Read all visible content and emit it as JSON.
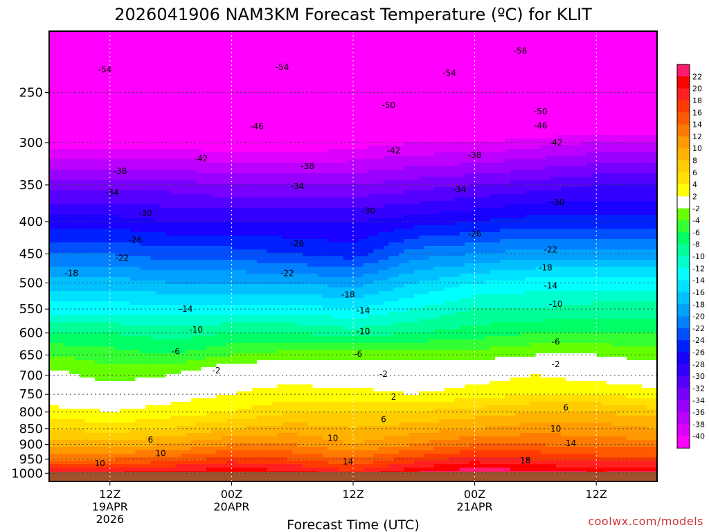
{
  "chart_data": {
    "type": "heatmap",
    "title": "2026041906 NAM3KM Forecast Temperature (ºC) for KLIT",
    "xlabel": "Forecast Time (UTC)",
    "ylabel": "",
    "x_ticks": [
      {
        "hour": 6,
        "lines": [
          "12Z",
          "19APR",
          "2026"
        ]
      },
      {
        "hour": 18,
        "lines": [
          "00Z",
          "20APR"
        ]
      },
      {
        "hour": 30,
        "lines": [
          "12Z"
        ]
      },
      {
        "hour": 42,
        "lines": [
          "00Z",
          "21APR"
        ]
      },
      {
        "hour": 54,
        "lines": [
          "12Z"
        ]
      }
    ],
    "x_range": [
      0,
      60
    ],
    "pressure_ticks": [
      250,
      300,
      350,
      400,
      450,
      500,
      550,
      600,
      650,
      700,
      750,
      800,
      850,
      900,
      950,
      1000
    ],
    "y_range": [
      1030,
      200
    ],
    "y_scale": "log-pressure",
    "grid": true,
    "colorbar": {
      "ticks": [
        22,
        20,
        18,
        16,
        14,
        12,
        10,
        8,
        6,
        4,
        2,
        -2,
        -4,
        -6,
        -8,
        -10,
        -12,
        -14,
        -16,
        -18,
        -20,
        -22,
        -24,
        -26,
        -28,
        -30,
        -32,
        -34,
        -36,
        -38,
        -40
      ],
      "colors": [
        "#ff1a6e",
        "#ff0000",
        "#ff2020",
        "#ff3a00",
        "#ff5a00",
        "#ff7a00",
        "#ff9a00",
        "#ffb300",
        "#ffcc00",
        "#ffe000",
        "#ffff00",
        "#ffffff",
        "#66ff00",
        "#33ff33",
        "#00ff66",
        "#00ff99",
        "#00ffcc",
        "#00ffff",
        "#00e0ff",
        "#00c0ff",
        "#00a0ff",
        "#0080ff",
        "#0050ff",
        "#0020ff",
        "#1a00ff",
        "#3300ff",
        "#5500ff",
        "#7700ff",
        "#9900ff",
        "#bb00ff",
        "#dd00ff",
        "#ff00ff"
      ]
    },
    "profile_levels": [
      1000,
      950,
      900,
      850,
      800,
      750,
      700,
      650,
      600,
      550,
      500,
      450,
      400,
      350,
      300,
      250,
      200
    ],
    "profile_times": [
      0,
      6,
      12,
      18,
      24,
      30,
      36,
      42,
      48,
      54,
      60
    ],
    "profile_temps": [
      [
        20,
        20,
        21,
        22,
        21,
        19,
        22,
        24,
        23,
        22,
        23
      ],
      [
        14,
        14,
        15,
        17,
        16,
        14,
        17,
        19,
        18,
        17,
        17
      ],
      [
        9,
        9,
        10,
        12,
        12,
        10,
        12,
        14,
        14,
        13,
        13
      ],
      [
        6,
        5,
        6,
        8,
        9,
        8,
        9,
        10,
        11,
        11,
        10
      ],
      [
        3,
        2,
        3,
        4,
        6,
        6,
        6,
        7,
        8,
        8,
        7
      ],
      [
        0,
        0,
        1,
        2,
        3,
        3,
        2,
        3,
        4,
        4,
        3
      ],
      [
        -1,
        -3,
        -2,
        1,
        1,
        0,
        0,
        1,
        2,
        1,
        0
      ],
      [
        -4,
        -5,
        -6,
        -4,
        -3,
        -3,
        -3,
        -3,
        -2,
        -2,
        -3
      ],
      [
        -8,
        -8,
        -9,
        -8,
        -8,
        -9,
        -8,
        -7,
        -6,
        -6,
        -6
      ],
      [
        -13,
        -13,
        -13,
        -13,
        -13,
        -14,
        -12,
        -10,
        -10,
        -9,
        -9
      ],
      [
        -17,
        -17,
        -18,
        -18,
        -18,
        -19,
        -16,
        -14,
        -13,
        -13,
        -13
      ],
      [
        -22,
        -22,
        -23,
        -23,
        -24,
        -25,
        -21,
        -20,
        -19,
        -19,
        -19
      ],
      [
        -27,
        -27,
        -28,
        -28,
        -28,
        -28,
        -27,
        -26,
        -25,
        -25,
        -25
      ],
      [
        -33,
        -33,
        -33,
        -34,
        -34,
        -34,
        -33,
        -32,
        -31,
        -30,
        -30
      ],
      [
        -41,
        -41,
        -41,
        -42,
        -42,
        -41,
        -40,
        -40,
        -39,
        -38,
        -38
      ],
      [
        -52,
        -52,
        -52,
        -53,
        -53,
        -52,
        -51,
        -51,
        -50,
        -50,
        -50
      ],
      [
        -58,
        -58,
        -58,
        -58,
        -58,
        -57,
        -57,
        -58,
        -58,
        -58,
        -58
      ]
    ],
    "contour_labels": [
      {
        "t": 5.5,
        "p": 230,
        "v": "-54"
      },
      {
        "t": 23.0,
        "p": 228,
        "v": "-54"
      },
      {
        "t": 39.5,
        "p": 233,
        "v": "-54"
      },
      {
        "t": 46.5,
        "p": 215,
        "v": "-58"
      },
      {
        "t": 33.5,
        "p": 262,
        "v": "-50"
      },
      {
        "t": 48.5,
        "p": 268,
        "v": "-50"
      },
      {
        "t": 20.5,
        "p": 283,
        "v": "-46"
      },
      {
        "t": 48.5,
        "p": 282,
        "v": "-46"
      },
      {
        "t": 15.0,
        "p": 318,
        "v": "-42"
      },
      {
        "t": 34.0,
        "p": 309,
        "v": "-42"
      },
      {
        "t": 50.0,
        "p": 300,
        "v": "-42"
      },
      {
        "t": 42.0,
        "p": 314,
        "v": "-38"
      },
      {
        "t": 7.0,
        "p": 333,
        "v": "-38"
      },
      {
        "t": 25.5,
        "p": 327,
        "v": "-38"
      },
      {
        "t": 6.2,
        "p": 360,
        "v": "-34"
      },
      {
        "t": 24.5,
        "p": 352,
        "v": "-34"
      },
      {
        "t": 40.5,
        "p": 356,
        "v": "-34"
      },
      {
        "t": 9.5,
        "p": 388,
        "v": "-30"
      },
      {
        "t": 31.5,
        "p": 385,
        "v": "-30"
      },
      {
        "t": 50.2,
        "p": 373,
        "v": "-30"
      },
      {
        "t": 8.5,
        "p": 428,
        "v": "-26"
      },
      {
        "t": 24.5,
        "p": 433,
        "v": "-26"
      },
      {
        "t": 42.0,
        "p": 418,
        "v": "-26"
      },
      {
        "t": 7.2,
        "p": 457,
        "v": "-22"
      },
      {
        "t": 23.5,
        "p": 483,
        "v": "-22"
      },
      {
        "t": 49.5,
        "p": 443,
        "v": "-22"
      },
      {
        "t": 2.2,
        "p": 483,
        "v": "-18"
      },
      {
        "t": 29.5,
        "p": 522,
        "v": "-18"
      },
      {
        "t": 49.0,
        "p": 473,
        "v": "-18"
      },
      {
        "t": 13.5,
        "p": 550,
        "v": "-14"
      },
      {
        "t": 31.0,
        "p": 553,
        "v": "-14"
      },
      {
        "t": 49.5,
        "p": 505,
        "v": "-14"
      },
      {
        "t": 14.5,
        "p": 593,
        "v": "-10"
      },
      {
        "t": 31.0,
        "p": 597,
        "v": "-10"
      },
      {
        "t": 50.0,
        "p": 540,
        "v": "-10"
      },
      {
        "t": 12.5,
        "p": 642,
        "v": "-6"
      },
      {
        "t": 30.5,
        "p": 648,
        "v": "-6"
      },
      {
        "t": 50.0,
        "p": 620,
        "v": "-6"
      },
      {
        "t": 16.5,
        "p": 688,
        "v": "-2"
      },
      {
        "t": 33.0,
        "p": 697,
        "v": "-2"
      },
      {
        "t": 50.0,
        "p": 673,
        "v": "-2"
      },
      {
        "t": 34.0,
        "p": 757,
        "v": "2"
      },
      {
        "t": 33.0,
        "p": 822,
        "v": "6"
      },
      {
        "t": 10.0,
        "p": 885,
        "v": "6"
      },
      {
        "t": 51.0,
        "p": 787,
        "v": "6"
      },
      {
        "t": 28.0,
        "p": 880,
        "v": "10"
      },
      {
        "t": 11.0,
        "p": 930,
        "v": "10"
      },
      {
        "t": 5.0,
        "p": 965,
        "v": "10"
      },
      {
        "t": 50.0,
        "p": 850,
        "v": "10"
      },
      {
        "t": 29.5,
        "p": 958,
        "v": "14"
      },
      {
        "t": 51.5,
        "p": 897,
        "v": "14"
      },
      {
        "t": 47.0,
        "p": 955,
        "v": "18"
      }
    ],
    "credit": "coolwx.com/models"
  }
}
